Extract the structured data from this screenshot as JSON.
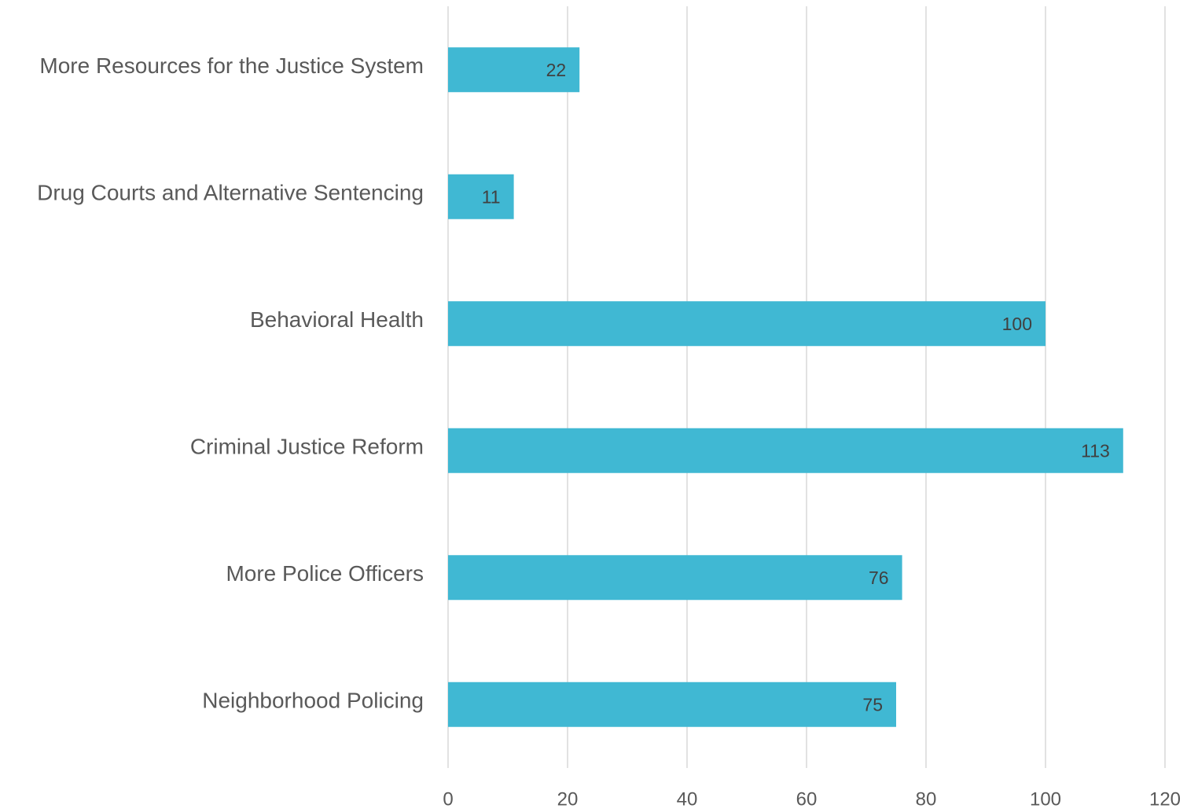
{
  "chart_data": {
    "type": "bar",
    "orientation": "horizontal",
    "categories": [
      "More Resources for the Justice System",
      "Drug Courts and Alternative Sentencing",
      "Behavioral Health",
      "Criminal Justice Reform",
      "More Police Officers",
      "Neighborhood Policing"
    ],
    "values": [
      22,
      11,
      100,
      113,
      76,
      75
    ],
    "color": "#40b8d3",
    "xlim": [
      0,
      120
    ],
    "xticks": [
      0,
      20,
      40,
      60,
      80,
      100,
      120
    ],
    "grid": true
  }
}
